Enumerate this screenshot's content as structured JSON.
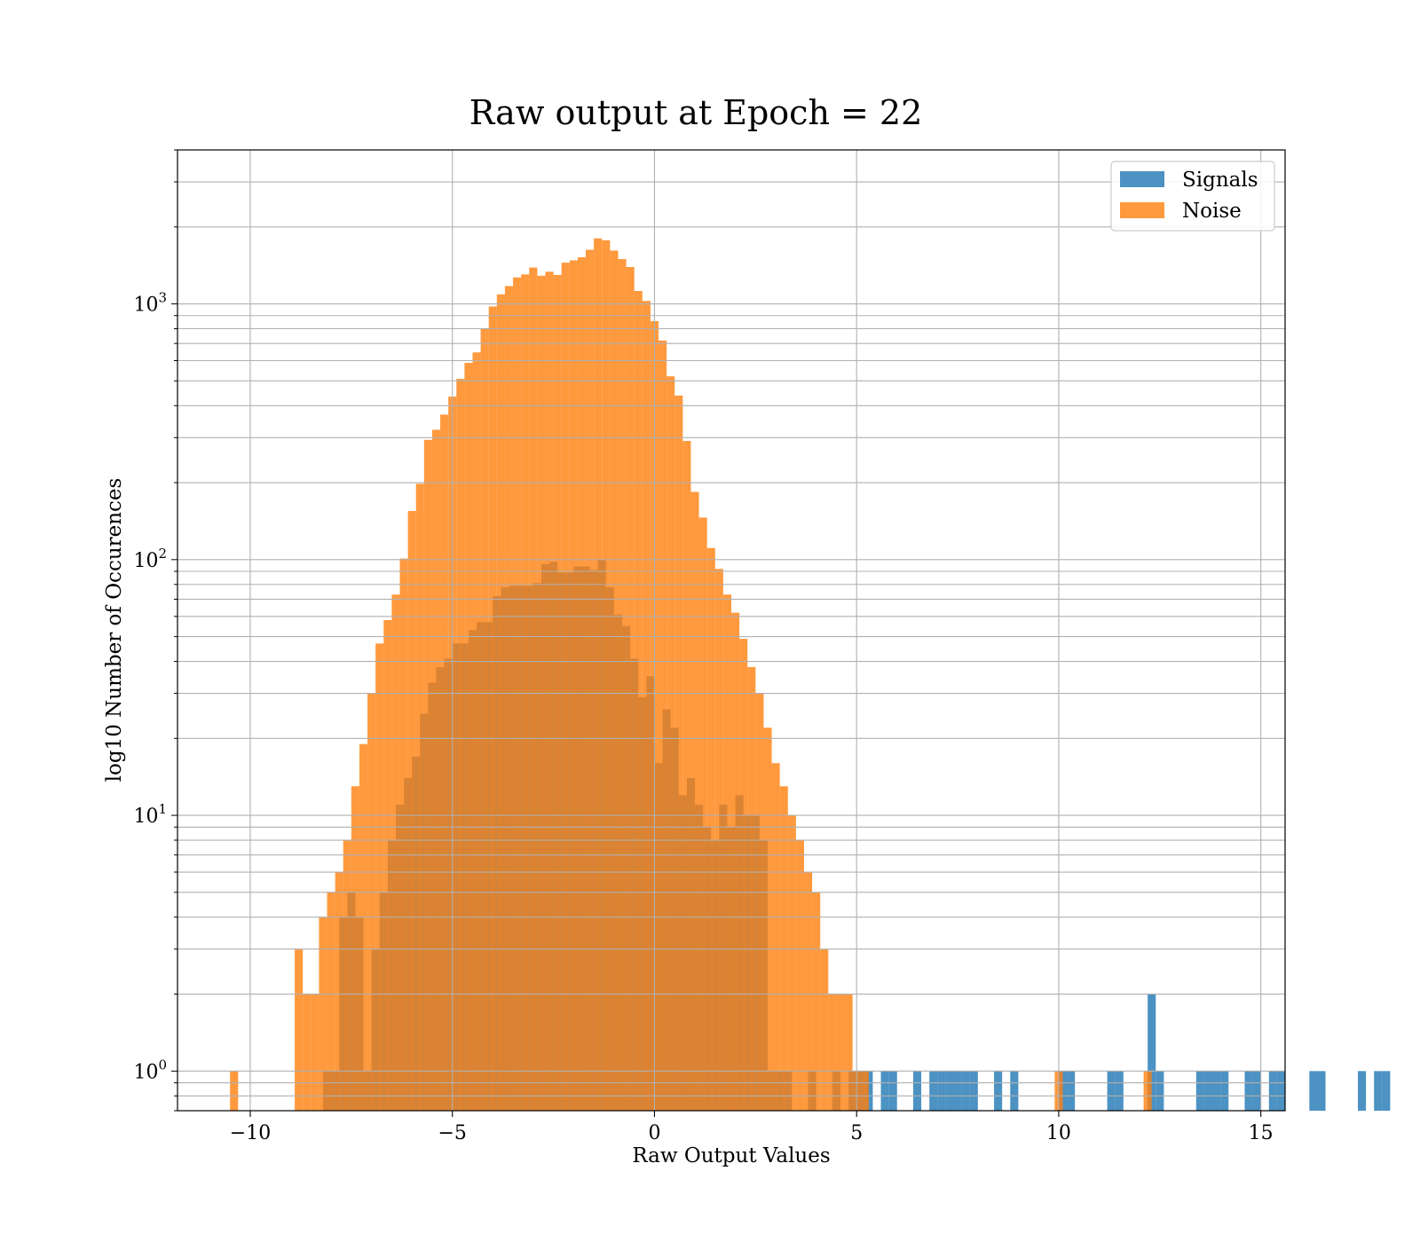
{
  "chart_data": {
    "type": "histogram",
    "title": "Raw output at Epoch = 22",
    "xlabel": "Raw Output Values",
    "ylabel": "log10 Number of Occurences",
    "xlim": [
      -11.8,
      15.6
    ],
    "ylim": [
      0.7,
      4000
    ],
    "yscale": "log",
    "grid": true,
    "legend_position": "top-right",
    "x_ticks": [
      {
        "value": -10,
        "label": "−10"
      },
      {
        "value": -5,
        "label": "−5"
      },
      {
        "value": 0,
        "label": "0"
      },
      {
        "value": 5,
        "label": "5"
      },
      {
        "value": 10,
        "label": "10"
      },
      {
        "value": 15,
        "label": "15"
      }
    ],
    "y_ticks": [
      {
        "value": 1,
        "base": "10",
        "exp": "0"
      },
      {
        "value": 10,
        "base": "10",
        "exp": "1"
      },
      {
        "value": 100,
        "base": "10",
        "exp": "2"
      },
      {
        "value": 1000,
        "base": "10",
        "exp": "3"
      }
    ],
    "series": [
      {
        "name": "Signals",
        "color": "#1f77b4",
        "opacity": 0.8,
        "bin_start": -8.2,
        "bin_width": 0.2,
        "values": [
          1,
          1,
          4,
          5,
          4,
          1,
          3,
          5,
          8,
          11,
          14,
          17,
          25,
          33,
          38,
          41,
          47,
          47,
          53,
          57,
          57,
          72,
          78,
          79,
          79,
          79,
          81,
          96,
          98,
          89,
          89,
          94,
          94,
          91,
          100,
          78,
          61,
          55,
          41,
          29,
          35,
          16,
          26,
          22,
          12,
          14,
          11,
          9,
          8,
          11,
          9,
          12,
          10,
          10,
          8,
          1,
          1,
          1,
          0,
          0,
          1,
          0,
          0,
          1,
          0,
          1,
          1,
          1,
          0,
          1,
          1,
          0,
          0,
          1,
          0,
          1,
          1,
          1,
          1,
          1,
          1,
          0,
          0,
          1,
          0,
          1,
          0,
          0,
          0,
          0,
          0,
          1,
          1,
          0,
          0,
          0,
          0,
          1,
          1,
          0,
          0,
          0,
          2,
          1,
          0,
          0,
          0,
          0,
          1,
          1,
          1,
          1,
          0,
          0,
          1,
          1,
          0,
          1,
          1,
          0,
          0,
          0,
          1,
          1,
          0,
          0,
          0,
          0,
          1,
          0,
          1,
          1,
          0
        ]
      },
      {
        "name": "Noise",
        "color": "#ff7f0e",
        "opacity": 0.8,
        "bin_start": -10.5,
        "bin_width": 0.2,
        "values": [
          1,
          0,
          0,
          0,
          0,
          0,
          0,
          0,
          3,
          2,
          2,
          4,
          5,
          6,
          8,
          13,
          19,
          30,
          47,
          58,
          73,
          101,
          155,
          198,
          294,
          322,
          369,
          434,
          509,
          588,
          646,
          800,
          977,
          1090,
          1174,
          1269,
          1304,
          1387,
          1289,
          1336,
          1298,
          1449,
          1480,
          1522,
          1628,
          1804,
          1773,
          1617,
          1497,
          1394,
          1123,
          1027,
          856,
          719,
          521,
          438,
          291,
          184,
          146,
          111,
          92,
          73,
          62,
          49,
          38,
          30,
          22,
          16,
          13,
          10,
          8,
          6,
          5,
          3,
          2,
          2,
          2,
          1,
          1,
          0,
          0,
          0,
          0,
          0,
          0,
          0,
          0,
          0,
          0,
          0,
          0,
          0,
          0,
          0,
          0,
          0,
          0,
          0,
          0,
          0,
          0,
          0,
          1,
          0,
          0,
          0,
          0,
          0,
          0,
          0,
          0,
          0,
          0,
          1,
          0,
          0,
          0,
          0,
          0,
          0,
          0,
          0,
          0,
          0,
          0,
          0,
          0,
          0,
          0,
          0,
          0,
          0,
          0,
          0,
          0,
          0,
          0,
          0
        ]
      }
    ]
  }
}
